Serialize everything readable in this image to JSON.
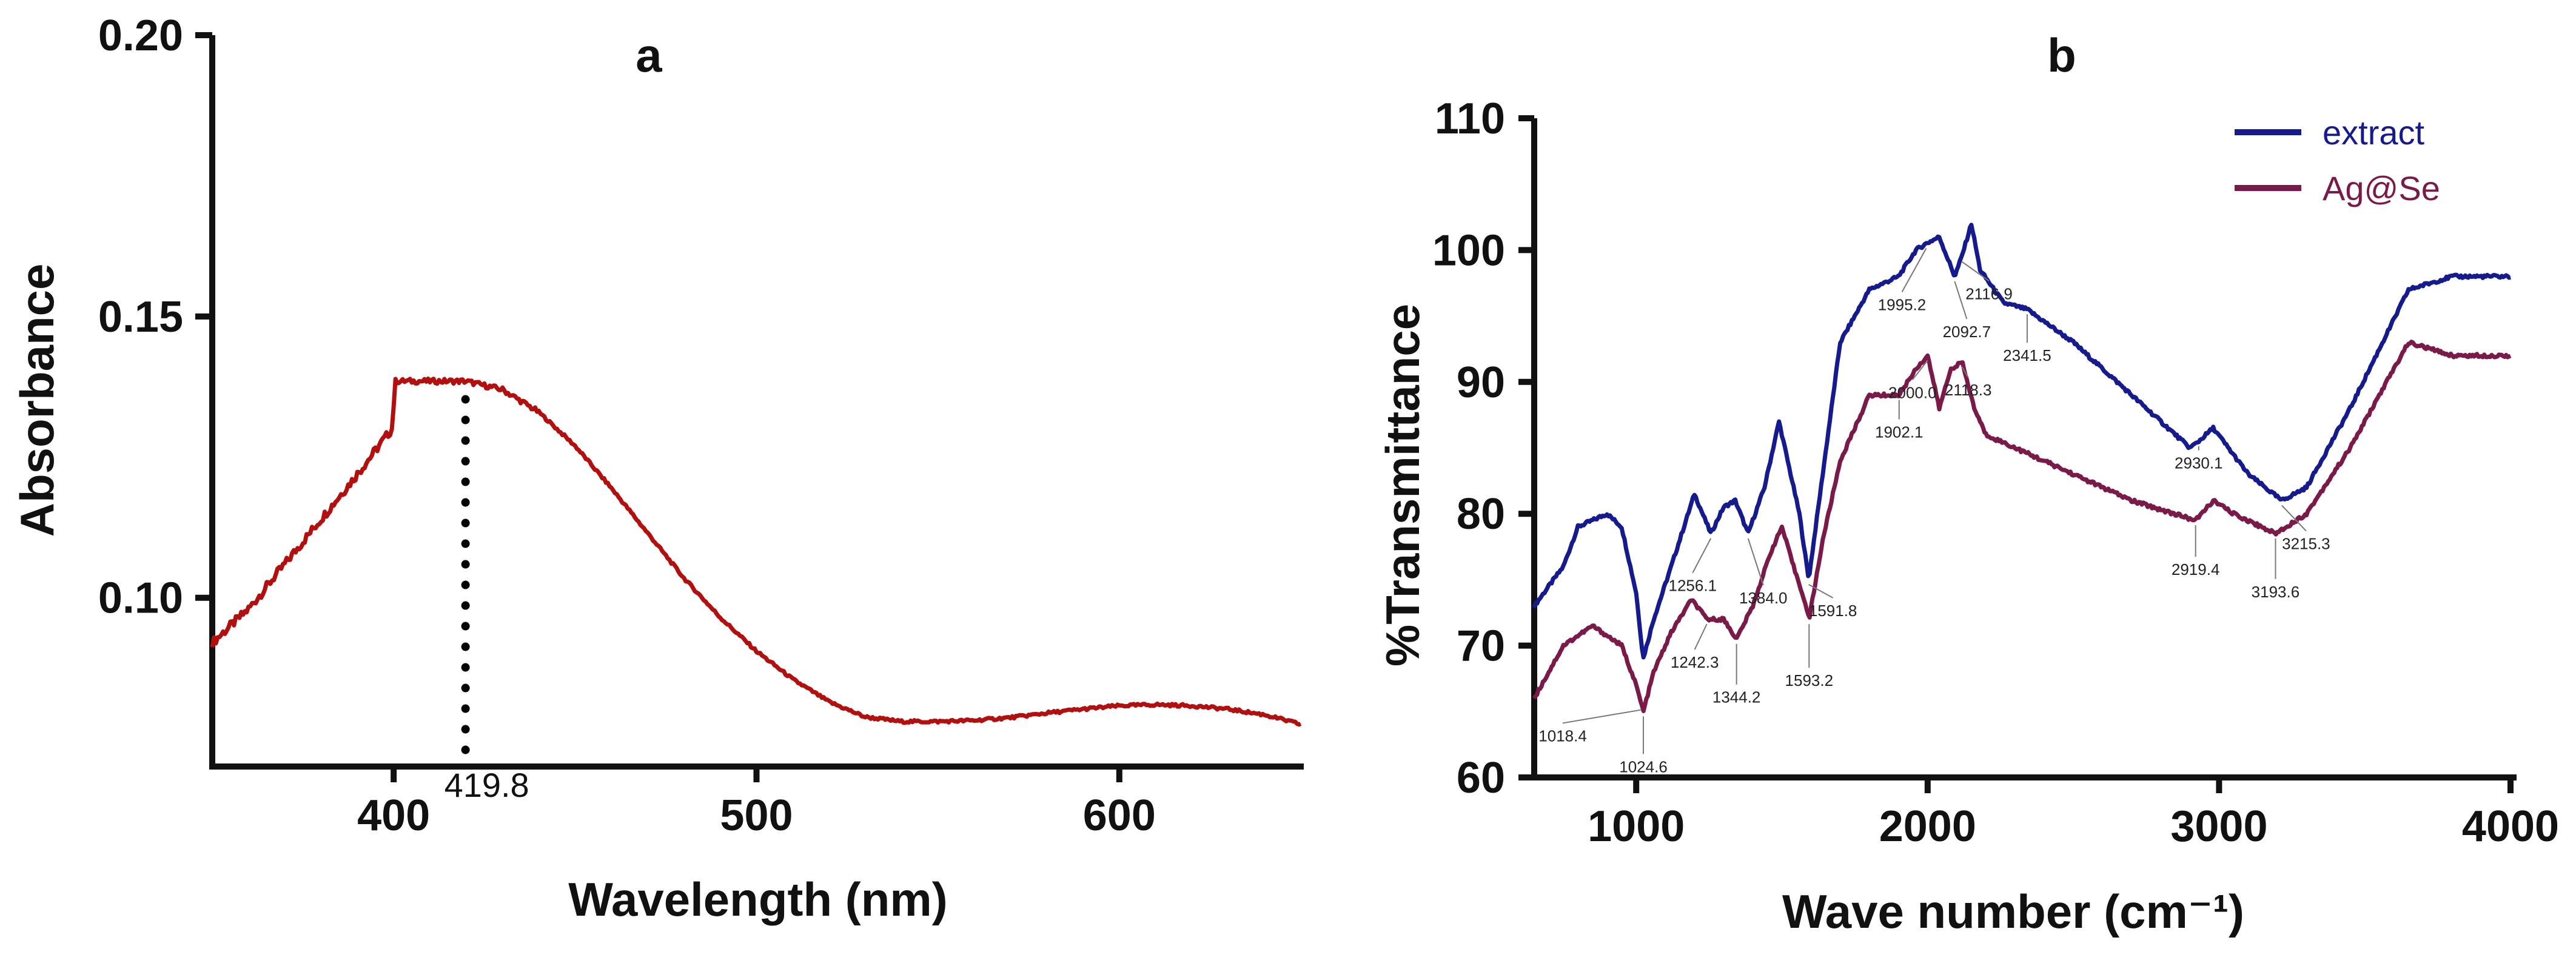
{
  "chart_data": [
    {
      "panel": "a",
      "type": "line",
      "title": "a",
      "xlabel": "Wavelength (nm)",
      "ylabel": "Absorbance",
      "xlim": [
        350,
        650
      ],
      "ylim": [
        0.07,
        0.2
      ],
      "xticks": [
        "400",
        "500",
        "600"
      ],
      "yticks": [
        "0.10",
        "0.15",
        "0.20"
      ],
      "color": "#b20f0f",
      "series": [
        {
          "name": "Absorbance",
          "x": [
            350,
            360,
            370,
            380,
            390,
            399.5,
            400.5,
            410,
            419.8,
            430,
            440,
            450,
            460,
            470,
            480,
            490,
            500,
            510,
            520,
            530,
            540,
            550,
            560,
            570,
            580,
            590,
            600,
            610,
            620,
            630,
            640,
            650
          ],
          "y": [
            0.092,
            0.098,
            0.106,
            0.114,
            0.122,
            0.13,
            0.1385,
            0.1385,
            0.1385,
            0.137,
            0.133,
            0.127,
            0.1195,
            0.1115,
            0.1035,
            0.0965,
            0.0905,
            0.0855,
            0.0815,
            0.0788,
            0.078,
            0.078,
            0.0782,
            0.0787,
            0.0795,
            0.0802,
            0.0808,
            0.081,
            0.0808,
            0.0802,
            0.0792,
            0.0775
          ]
        }
      ],
      "annotations": [
        {
          "label": "419.8",
          "x": 419.8,
          "y": 0.1385,
          "style": "dotted-drop-line"
        }
      ]
    },
    {
      "panel": "b",
      "type": "line",
      "title": "b",
      "xlabel": "Wave number (cm⁻¹)",
      "ylabel": "%Transmittance",
      "xlim": [
        650,
        4000
      ],
      "ylim": [
        60,
        110
      ],
      "xticks": [
        "1000",
        "2000",
        "3000",
        "4000"
      ],
      "yticks": [
        "60",
        "70",
        "80",
        "90",
        "100",
        "110"
      ],
      "legend": {
        "position": "top-right",
        "entries": [
          "extract",
          "Ag@Se"
        ]
      },
      "series": [
        {
          "name": "extract",
          "color": "#151a8c",
          "x": [
            650,
            750,
            800,
            900,
            950,
            1000,
            1024,
            1060,
            1120,
            1200,
            1256,
            1300,
            1340,
            1384,
            1440,
            1490,
            1530,
            1560,
            1591.8,
            1640,
            1700,
            1800,
            1900,
            1960,
            1995.2,
            2040,
            2092.7,
            2116.9,
            2150,
            2180,
            2260,
            2341.5,
            2500,
            2700,
            2900,
            2930.1,
            2980,
            3100,
            3215.3,
            3300,
            3450,
            3650,
            3800,
            4000
          ],
          "y": [
            73,
            76,
            79,
            80,
            79,
            74,
            69,
            72,
            76,
            81.5,
            78.5,
            80.5,
            81,
            78.5,
            82,
            87,
            83,
            80,
            75,
            83,
            93,
            97,
            98,
            100,
            100.5,
            101,
            98,
            99.5,
            102,
            98.5,
            96,
            95.5,
            93,
            89,
            85,
            85.5,
            86.5,
            83,
            81,
            82,
            88,
            97,
            98,
            98
          ]
        },
        {
          "name": "Ag@Se",
          "color": "#7a1a48",
          "x": [
            650,
            750,
            850,
            950,
            1000,
            1018.4,
            1024.6,
            1060,
            1120,
            1190,
            1242.3,
            1300,
            1344.2,
            1400,
            1460,
            1500,
            1540,
            1570,
            1593.2,
            1640,
            1700,
            1800,
            1902.1,
            1960,
            2000,
            2040,
            2080,
            2118.3,
            2160,
            2200,
            2300,
            2500,
            2700,
            2919.4,
            2980,
            3050,
            3193.6,
            3300,
            3450,
            3650,
            3800,
            4000
          ],
          "y": [
            66,
            70,
            71.5,
            70,
            67,
            65.5,
            65,
            68,
            71,
            73.5,
            72,
            72,
            70.5,
            73,
            77,
            79,
            76,
            74,
            72,
            78,
            84,
            89,
            89,
            91,
            92,
            88,
            91,
            91.5,
            88,
            86,
            85,
            83,
            81,
            79.5,
            81,
            80,
            78.5,
            80,
            85,
            93,
            92,
            92
          ]
        }
      ],
      "annotations_extract": [
        "1256.1",
        "1384.0",
        "1591.8",
        "1995.2",
        "2092.7",
        "2116.9",
        "2341.5",
        "2930.1",
        "3215.3"
      ],
      "annotations_agse": [
        "1018.4",
        "1024.6",
        "1242.3",
        "1344.2",
        "1593.2",
        "1902.1",
        "2000.0",
        "2118.3",
        "2919.4",
        "3193.6"
      ]
    }
  ]
}
